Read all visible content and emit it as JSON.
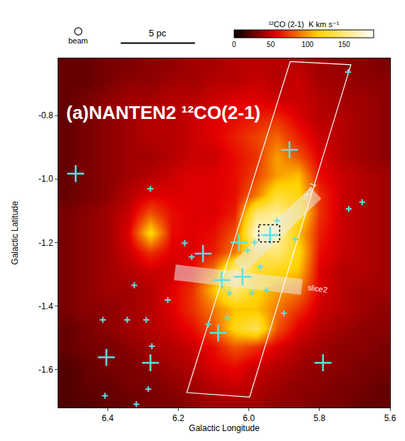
{
  "chart_data": {
    "type": "heatmap",
    "title": "(a)NANTEN2 ¹²CO(2-1)",
    "x_label": "Galactic Longitude",
    "y_label": "Galactic Latitude",
    "color": "Hot",
    "grid": false,
    "xlim": [
      6.54,
      5.6
    ],
    "ylim": [
      -1.72,
      -0.62
    ],
    "xticks": [
      6.4,
      6.2,
      {
        "value": 6,
        "label": "6.0"
      },
      5.8,
      5.6
    ],
    "yticks": [
      -0.8,
      {
        "value": -1,
        "label": "-1.0"
      },
      -1.2,
      -1.4,
      -1.6
    ],
    "colorbar": {
      "title": "¹²CO (2-1)  K km s⁻¹",
      "range": [
        0,
        190
      ],
      "ticks": [
        0,
        50,
        100,
        150
      ]
    },
    "x": [
      6.52,
      6.46,
      6.4,
      6.34,
      6.28,
      6.22,
      6.16,
      6.1,
      6.04,
      5.98,
      5.92,
      5.86,
      5.8,
      5.74,
      5.68,
      5.62
    ],
    "y": [
      -0.63,
      -0.69,
      -0.75,
      -0.81,
      -0.87,
      -0.93,
      -0.99,
      -1.05,
      -1.11,
      -1.17,
      -1.23,
      -1.29,
      -1.35,
      -1.41,
      -1.47,
      -1.53,
      -1.59,
      -1.65,
      -1.71
    ],
    "z": [
      [
        25,
        25,
        30,
        30,
        35,
        35,
        40,
        40,
        45,
        45,
        45,
        45,
        40,
        35,
        35,
        30
      ],
      [
        25,
        25,
        30,
        35,
        35,
        40,
        40,
        45,
        45,
        50,
        45,
        50,
        40,
        40,
        35,
        35
      ],
      [
        25,
        30,
        35,
        40,
        40,
        45,
        45,
        50,
        55,
        55,
        50,
        50,
        45,
        40,
        40,
        35
      ],
      [
        25,
        30,
        35,
        40,
        45,
        45,
        50,
        55,
        60,
        65,
        70,
        55,
        45,
        45,
        40,
        35
      ],
      [
        25,
        30,
        35,
        40,
        45,
        45,
        50,
        55,
        65,
        75,
        85,
        65,
        50,
        45,
        40,
        35
      ],
      [
        25,
        30,
        35,
        40,
        40,
        45,
        50,
        50,
        60,
        70,
        100,
        80,
        55,
        45,
        40,
        35
      ],
      [
        25,
        30,
        35,
        40,
        45,
        50,
        55,
        55,
        60,
        75,
        100,
        110,
        60,
        50,
        45,
        40
      ],
      [
        25,
        30,
        35,
        45,
        55,
        55,
        55,
        55,
        60,
        90,
        130,
        120,
        70,
        50,
        45,
        40
      ],
      [
        30,
        35,
        40,
        50,
        80,
        60,
        55,
        55,
        65,
        150,
        160,
        130,
        70,
        50,
        45,
        40
      ],
      [
        30,
        35,
        40,
        55,
        120,
        60,
        55,
        60,
        80,
        180,
        170,
        110,
        65,
        50,
        45,
        40
      ],
      [
        30,
        35,
        40,
        50,
        70,
        55,
        55,
        65,
        90,
        140,
        150,
        120,
        60,
        50,
        45,
        40
      ],
      [
        30,
        35,
        40,
        45,
        50,
        50,
        60,
        90,
        160,
        130,
        120,
        110,
        55,
        45,
        45,
        40
      ],
      [
        30,
        35,
        40,
        40,
        45,
        55,
        70,
        110,
        150,
        120,
        100,
        90,
        55,
        45,
        40,
        40
      ],
      [
        30,
        35,
        35,
        40,
        45,
        55,
        70,
        90,
        110,
        110,
        90,
        70,
        50,
        45,
        40,
        35
      ],
      [
        25,
        30,
        35,
        40,
        45,
        50,
        60,
        80,
        120,
        140,
        80,
        55,
        45,
        40,
        35,
        35
      ],
      [
        25,
        30,
        30,
        35,
        40,
        45,
        50,
        60,
        80,
        70,
        55,
        45,
        40,
        35,
        35,
        30
      ],
      [
        20,
        25,
        30,
        30,
        35,
        40,
        45,
        55,
        60,
        50,
        45,
        40,
        35,
        35,
        30,
        30
      ],
      [
        20,
        25,
        25,
        30,
        30,
        35,
        40,
        45,
        50,
        45,
        40,
        35,
        35,
        30,
        30,
        25
      ],
      [
        20,
        20,
        25,
        25,
        30,
        30,
        35,
        40,
        40,
        40,
        35,
        35,
        30,
        30,
        25,
        25
      ]
    ],
    "sources": {
      "marker": "cross",
      "color": "#5ce1e6",
      "large": {
        "x": [
          6.491,
          5.885,
          5.94,
          6.028,
          6.13,
          6.077,
          6.018,
          6.087,
          6.404,
          6.279,
          5.79
        ],
        "y": [
          -0.983,
          -0.908,
          -1.177,
          -1.2,
          -1.235,
          -1.319,
          -1.308,
          -1.485,
          -1.562,
          -1.579,
          -1.579
        ]
      },
      "small": {
        "x": [
          6.279,
          6.162,
          6.325,
          6.182,
          6.004,
          5.968,
          6.055,
          5.992,
          5.95,
          5.901,
          6.061,
          6.115,
          6.23,
          6.291,
          6.275,
          6.345,
          6.414,
          6.408,
          6.319,
          6.285,
          5.717,
          5.679,
          5.719,
          5.869,
          5.92,
          5.984
        ],
        "y": [
          -1.031,
          -1.246,
          -1.335,
          -1.202,
          -1.225,
          -1.277,
          -1.36,
          -1.36,
          -1.35,
          -1.423,
          -1.437,
          -1.458,
          -1.381,
          -1.444,
          -1.527,
          -1.444,
          -1.444,
          -1.683,
          -1.71,
          -1.662,
          -1.094,
          -1.073,
          -0.663,
          -1.19,
          -1.131,
          -1.2
        ]
      }
    },
    "box": {
      "x": [
        5.883,
        5.711,
        5.998,
        6.176,
        5.883
      ],
      "y": [
        -0.63,
        -0.64,
        -1.687,
        -1.673,
        -0.63
      ]
    },
    "slices": [
      {
        "label": "slice1",
        "x": [
          6.028,
          5.81
        ],
        "y": [
          -1.277,
          -1.044
        ],
        "label_x": 5.83,
        "label_y": -1.04
      },
      {
        "label": "slice2",
        "x": [
          6.21,
          5.85
        ],
        "y": [
          -1.294,
          -1.34
        ],
        "label_x": 5.806,
        "label_y": -1.346
      }
    ],
    "dotted_box": {
      "x": [
        5.972,
        5.913
      ],
      "y": [
        -1.144,
        -1.198
      ]
    },
    "annotations": {
      "beam": "beam",
      "scale_bar": "5 pc"
    }
  }
}
